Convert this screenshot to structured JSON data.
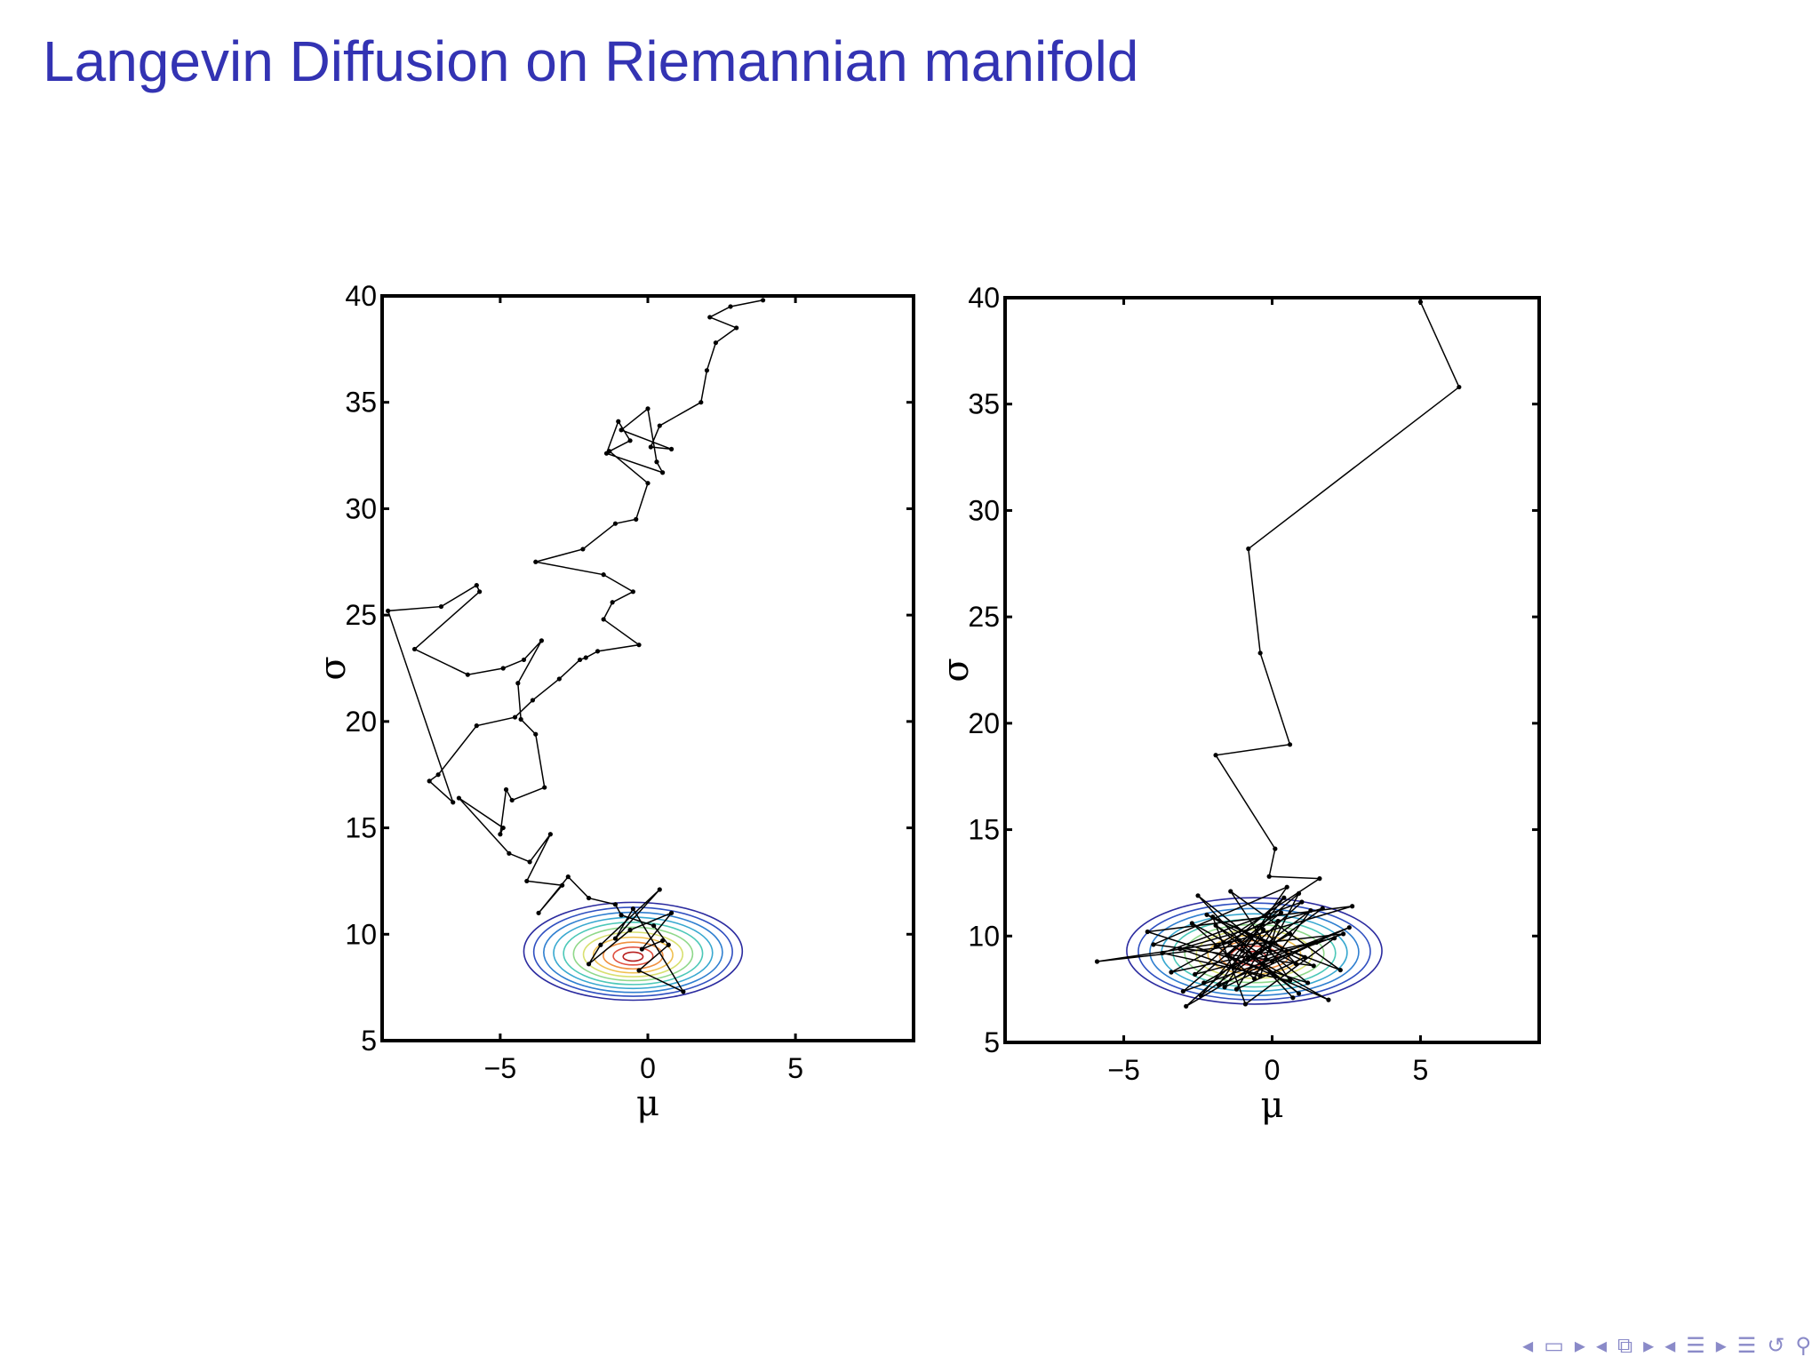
{
  "slide": {
    "title": "Langevin Diffusion on Riemannian manifold"
  },
  "colors": {
    "title": "#3333b3",
    "nav": "#8a8ac8",
    "contours": [
      "#2b2b9f",
      "#2f4fc0",
      "#2f7fd0",
      "#38a8d0",
      "#4cc8b8",
      "#8fd88a",
      "#d8e070",
      "#f0c050",
      "#f09040",
      "#e05040",
      "#b82020"
    ]
  },
  "navigation": {
    "icons": [
      "nav-prev-frame-icon",
      "nav-frame-icon",
      "nav-next-frame-icon",
      "nav-prev-subsection-icon",
      "nav-subsection-icon",
      "nav-next-subsection-icon",
      "nav-prev-section-icon",
      "nav-section-icon",
      "nav-next-section-icon",
      "nav-align-icon",
      "nav-back-icon",
      "nav-search-icon"
    ]
  },
  "chart_data": [
    {
      "type": "scatter",
      "title": "",
      "xlabel": "μ",
      "ylabel": "σ",
      "xlim": [
        -9,
        9
      ],
      "ylim": [
        5,
        40
      ],
      "xticks": [
        -5,
        0,
        5
      ],
      "xtick_labels": [
        "−5",
        "0",
        "5"
      ],
      "yticks": [
        5,
        10,
        15,
        20,
        25,
        30,
        35,
        40
      ],
      "ytick_labels": [
        "5",
        "10",
        "15",
        "20",
        "25",
        "30",
        "35",
        "40"
      ],
      "contour": {
        "center_x": -0.5,
        "center_y": 9.2,
        "rx_max": 3.7,
        "ry_max": 2.3,
        "levels": 11
      },
      "series": [
        {
          "x": [
            3.9,
            2.8,
            2.1,
            3.0,
            2.3,
            2.0,
            1.8,
            0.4,
            0.1,
            0.8,
            -0.9,
            0.0,
            0.3,
            0.5,
            -1.4,
            -1.0,
            -0.6,
            -1.3,
            0.0,
            -0.4,
            -1.1,
            -2.2,
            -3.8,
            -1.5,
            -0.5,
            -1.2,
            -1.5,
            -0.3,
            -1.7,
            -2.1,
            -2.3,
            -3.0,
            -3.9,
            -4.5,
            -5.8,
            -7.1,
            -7.4,
            -6.6,
            -8.8,
            -7.0,
            -5.8,
            -5.7,
            -7.9,
            -6.1,
            -4.9,
            -4.2,
            -3.6,
            -4.4,
            -4.3,
            -3.8,
            -3.5,
            -4.6,
            -4.8,
            -5.0,
            -4.9,
            -6.4,
            -4.7,
            -4.0,
            -3.3,
            -4.1,
            -2.9,
            -3.7,
            -2.7,
            -2.0,
            -1.1,
            -0.9,
            0.2,
            0.7,
            -0.3,
            1.2,
            -0.5,
            -1.1,
            0.4,
            -1.6,
            -2.0,
            -0.6,
            0.8,
            -0.2,
            0.5
          ],
          "y": [
            39.8,
            39.5,
            39.0,
            38.5,
            37.8,
            36.5,
            35.0,
            33.9,
            32.9,
            32.8,
            33.7,
            34.7,
            32.2,
            31.7,
            32.6,
            34.1,
            33.2,
            32.7,
            31.2,
            29.5,
            29.3,
            28.1,
            27.5,
            26.9,
            26.1,
            25.6,
            24.8,
            23.6,
            23.3,
            23.0,
            22.9,
            22.0,
            21.0,
            20.2,
            19.8,
            17.5,
            17.2,
            16.2,
            25.2,
            25.4,
            26.4,
            26.1,
            23.4,
            22.2,
            22.5,
            22.9,
            23.8,
            21.8,
            20.1,
            19.4,
            16.9,
            16.3,
            16.8,
            14.7,
            15.0,
            16.4,
            13.8,
            13.4,
            14.7,
            12.5,
            12.3,
            11.0,
            12.7,
            11.7,
            11.4,
            10.9,
            10.4,
            9.5,
            8.3,
            7.3,
            11.2,
            9.8,
            12.1,
            9.5,
            8.6,
            10.2,
            11.0,
            9.3,
            9.7
          ]
        }
      ]
    },
    {
      "type": "scatter",
      "title": "",
      "xlabel": "μ",
      "ylabel": "σ",
      "xlim": [
        -9,
        9
      ],
      "ylim": [
        5,
        40
      ],
      "xticks": [
        -5,
        0,
        5
      ],
      "xtick_labels": [
        "−5",
        "0",
        "5"
      ],
      "yticks": [
        5,
        10,
        15,
        20,
        25,
        30,
        35,
        40
      ],
      "ytick_labels": [
        "5",
        "10",
        "15",
        "20",
        "25",
        "30",
        "35",
        "40"
      ],
      "contour": {
        "center_x": -0.6,
        "center_y": 9.3,
        "rx_max": 4.3,
        "ry_max": 2.5,
        "levels": 11
      },
      "series": [
        {
          "x": [
            5.0,
            6.3,
            -0.8,
            -0.4,
            0.6,
            -1.9,
            0.1,
            -0.1,
            1.6,
            -1.9,
            2.7,
            -4.2,
            1.2,
            -2.5,
            0.7,
            -1.1,
            -5.9,
            2.4,
            -3.0,
            0.9,
            -0.6,
            -2.7,
            1.9,
            -1.5,
            0.3,
            -3.4,
            2.1,
            -0.9,
            -2.0,
            1.4,
            -4.0,
            0.5,
            -1.8,
            2.6,
            -0.2,
            -2.9,
            1.0,
            -3.7,
            0.6,
            -1.4,
            2.3,
            -0.7,
            -2.4,
            1.7,
            -3.1,
            -0.4,
            0.2,
            -1.2,
            1.1,
            -2.2,
            0.8,
            -0.3,
            -1.6,
            1.5,
            -2.6,
            0.4,
            -1.0,
            0.9,
            -1.9,
            0.0,
            1.3,
            -0.8,
            -2.3,
            0.6,
            -1.3
          ],
          "y": [
            39.8,
            35.8,
            28.2,
            23.3,
            19.0,
            18.5,
            14.1,
            12.8,
            12.7,
            9.5,
            11.4,
            10.2,
            7.8,
            11.9,
            7.1,
            9.8,
            8.8,
            10.1,
            7.4,
            12.0,
            8.0,
            10.6,
            7.0,
            9.1,
            11.1,
            8.3,
            9.9,
            6.8,
            10.9,
            8.6,
            9.6,
            12.3,
            7.7,
            10.4,
            8.9,
            6.7,
            11.6,
            9.2,
            7.9,
            12.1,
            8.4,
            10.0,
            7.2,
            11.3,
            9.4,
            8.1,
            10.7,
            7.5,
            9.0,
            11.0,
            8.7,
            10.3,
            7.6,
            9.7,
            8.2,
            11.8,
            9.3,
            7.3,
            10.5,
            8.8,
            11.2,
            9.0,
            7.8,
            10.1,
            8.5
          ]
        }
      ]
    }
  ]
}
